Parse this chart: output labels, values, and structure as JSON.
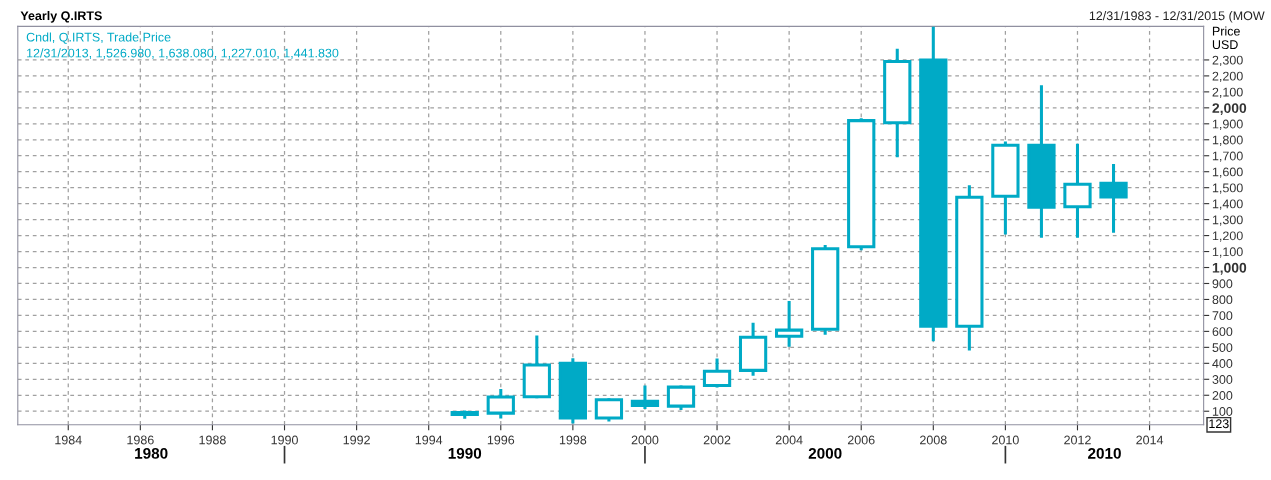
{
  "chart_data": {
    "type": "candlestick",
    "title": "Yearly Q.IRTS",
    "subtitle": "12/31/1983 - 12/31/2015 (MOW",
    "ylabel": "Price\nUSD",
    "annotations": [
      "Cndl, Q.IRTS, Trade Price",
      "12/31/2013, 1,526.980, 1,638.080, 1,227.010, 1,441.830",
      "123",
      "1980",
      "1990",
      "2000",
      "2010"
    ],
    "color": "#00aac6",
    "x": [
      1995,
      1996,
      1997,
      1998,
      1999,
      2000,
      2001,
      2002,
      2003,
      2004,
      2005,
      2006,
      2007,
      2008,
      2009,
      2010,
      2011,
      2012,
      2013
    ],
    "ohlc": [
      [
        92,
        95,
        62,
        80
      ],
      [
        88,
        230,
        64,
        189
      ],
      [
        191,
        565,
        191,
        390
      ],
      [
        400,
        422,
        33,
        57
      ],
      [
        58,
        172,
        46,
        172
      ],
      [
        162,
        251,
        124,
        136
      ],
      [
        132,
        251,
        118,
        251
      ],
      [
        261,
        420,
        258,
        350
      ],
      [
        356,
        644,
        331,
        563
      ],
      [
        569,
        780,
        513,
        608
      ],
      [
        613,
        1131,
        589,
        1118
      ],
      [
        1130,
        1925,
        1118,
        1920
      ],
      [
        1906,
        2360,
        1700,
        2290
      ],
      [
        2300,
        2500,
        548,
        632
      ],
      [
        632,
        1506,
        490,
        1440
      ],
      [
        1446,
        1780,
        1216,
        1766
      ],
      [
        1766,
        2132,
        1196,
        1378
      ],
      [
        1380,
        1766,
        1196,
        1521
      ],
      [
        1526.98,
        1638.08,
        1227.01,
        1441.83
      ]
    ],
    "xlim": [
      1982.6,
      2015.5
    ],
    "xticks": [
      1984,
      1986,
      1988,
      1990,
      1992,
      1994,
      1996,
      1998,
      2000,
      2002,
      2004,
      2006,
      2008,
      2010,
      2012,
      2014
    ],
    "ylim": [
      15,
      2510
    ],
    "yticks": [
      100,
      200,
      300,
      400,
      500,
      600,
      700,
      800,
      900,
      {
        "value": 1000,
        "label": "1,000"
      },
      {
        "value": 1100,
        "label": "1,100"
      },
      {
        "value": 1200,
        "label": "1,200"
      },
      {
        "value": 1300,
        "label": "1,300"
      },
      {
        "value": 1400,
        "label": "1,400"
      },
      {
        "value": 1500,
        "label": "1,500"
      },
      {
        "value": 1600,
        "label": "1,600"
      },
      {
        "value": 1700,
        "label": "1,700"
      },
      {
        "value": 1800,
        "label": "1,800"
      },
      {
        "value": 1900,
        "label": "1,900"
      },
      {
        "value": 2000,
        "label": "2,000"
      },
      {
        "value": 2100,
        "label": "2,100"
      },
      {
        "value": 2200,
        "label": "2,200"
      },
      {
        "value": 2300,
        "label": "2,300"
      }
    ],
    "grid": true
  }
}
